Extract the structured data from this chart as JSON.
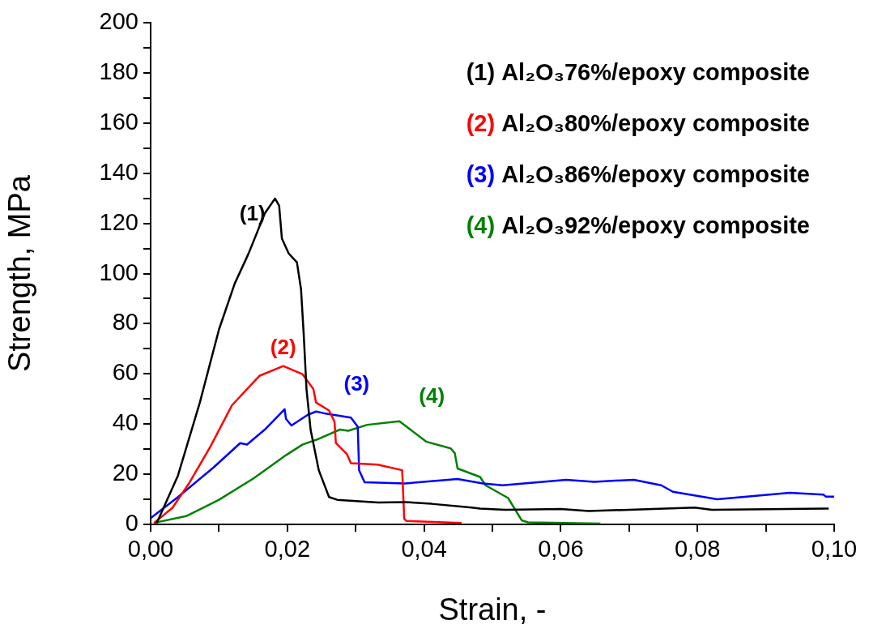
{
  "chart_data": {
    "type": "line",
    "xlabel": "Strain, -",
    "ylabel": "Strength, MPa",
    "xlim": [
      0,
      0.1
    ],
    "ylim": [
      0,
      200
    ],
    "xticks": [
      {
        "value": 0,
        "label": "0,00"
      },
      {
        "value": 0.01,
        "label": null
      },
      {
        "value": 0.02,
        "label": "0,02"
      },
      {
        "value": 0.03,
        "label": null
      },
      {
        "value": 0.04,
        "label": "0,04"
      },
      {
        "value": 0.05,
        "label": null
      },
      {
        "value": 0.06,
        "label": "0,06"
      },
      {
        "value": 0.07,
        "label": null
      },
      {
        "value": 0.08,
        "label": "0,08"
      },
      {
        "value": 0.09,
        "label": null
      },
      {
        "value": 0.1,
        "label": "0,10"
      }
    ],
    "yticks": [
      0,
      {
        "value": 10,
        "label": null
      },
      20,
      {
        "value": 30,
        "label": null
      },
      40,
      {
        "value": 50,
        "label": null
      },
      60,
      {
        "value": 70,
        "label": null
      },
      80,
      {
        "value": 90,
        "label": null
      },
      100,
      {
        "value": 110,
        "label": null
      },
      120,
      {
        "value": 130,
        "label": null
      },
      140,
      {
        "value": 150,
        "label": null
      },
      160,
      {
        "value": 170,
        "label": null
      },
      180,
      {
        "value": 190,
        "label": null
      },
      200
    ],
    "grid": false,
    "legend": "top right",
    "marker": "none",
    "line_style": "solid",
    "series": [
      {
        "name": "(1) Al₂O₃76%/epoxy composite",
        "color": "#000000",
        "x": [
          0.0009,
          0.004,
          0.0072,
          0.01,
          0.0123,
          0.0143,
          0.0167,
          0.0182,
          0.0188,
          0.0192,
          0.0202,
          0.0214,
          0.022,
          0.0224,
          0.0228,
          0.0234,
          0.0246,
          0.0261,
          0.0273,
          0.0333,
          0.0372,
          0.0411,
          0.047,
          0.0482,
          0.0519,
          0.06,
          0.0641,
          0.0796,
          0.0821,
          0.0992
        ],
        "values": [
          0.6,
          19.5,
          48.6,
          77.7,
          96,
          107.8,
          124,
          129.9,
          127,
          114,
          108,
          104.5,
          93.8,
          75.5,
          54,
          37.8,
          21.6,
          10.9,
          9.8,
          8.7,
          8.9,
          8.2,
          6.7,
          6.3,
          5.8,
          6.1,
          5.3,
          6.7,
          5.8,
          6.3
        ]
      },
      {
        "name": "(2) Al₂O₃80%/epoxy composite",
        "color": "#ff0000",
        "x": [
          0.0005,
          0.0032,
          0.0056,
          0.0088,
          0.0119,
          0.0159,
          0.0194,
          0.0222,
          0.0238,
          0.0242,
          0.0261,
          0.0269,
          0.0271,
          0.0287,
          0.0293,
          0.0332,
          0.0368,
          0.0371,
          0.0374,
          0.0455
        ],
        "values": [
          0.6,
          6.6,
          16.3,
          31.3,
          47.5,
          59.2,
          63.1,
          59.9,
          54,
          48.6,
          45.4,
          41,
          32.4,
          28.1,
          24.4,
          23.8,
          21.6,
          2.3,
          1.4,
          0.6
        ]
      },
      {
        "name": "(3) Al₂O₃86%/epoxy composite",
        "color": "#0000ff",
        "x": [
          0,
          0.004,
          0.0092,
          0.0131,
          0.0141,
          0.0167,
          0.0196,
          0.0198,
          0.0206,
          0.023,
          0.0242,
          0.0254,
          0.0293,
          0.0303,
          0.0305,
          0.0313,
          0.0372,
          0.0449,
          0.0486,
          0.0515,
          0.0608,
          0.0649,
          0.0707,
          0.0747,
          0.0764,
          0.0829,
          0.0935,
          0.0984,
          0.0988,
          0.1
        ],
        "values": [
          2.5,
          10.9,
          22.7,
          32.4,
          31.8,
          37.8,
          45.9,
          42.1,
          39.4,
          43.7,
          45,
          44.3,
          42.6,
          38.9,
          21.6,
          16.8,
          16.3,
          18.1,
          16.3,
          15.6,
          17.8,
          17,
          17.8,
          15.6,
          13,
          10,
          12.6,
          11.9,
          11.1,
          11.1
        ]
      },
      {
        "name": "(4) Al₂O₃92%/epoxy composite",
        "color": "#008000",
        "x": [
          0.0005,
          0.0052,
          0.01,
          0.0151,
          0.0198,
          0.0222,
          0.0246,
          0.0277,
          0.0289,
          0.0317,
          0.0364,
          0.038,
          0.0403,
          0.0439,
          0.0445,
          0.0449,
          0.0482,
          0.049,
          0.0523,
          0.0543,
          0.0552,
          0.0658
        ],
        "values": [
          0.6,
          3.3,
          9.8,
          18.4,
          27.6,
          31.8,
          34.1,
          37.8,
          37.3,
          39.7,
          41.1,
          37.8,
          33,
          30.3,
          28.4,
          22.3,
          18.9,
          15.6,
          10.5,
          1.6,
          0.8,
          0.3
        ]
      }
    ],
    "annotations": [
      "(1)",
      "(2)",
      "(3)",
      "(4)"
    ]
  }
}
